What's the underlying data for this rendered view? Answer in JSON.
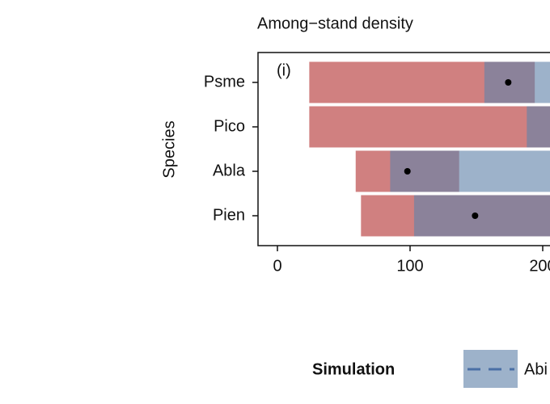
{
  "chart_data": {
    "type": "range-bar",
    "title": "Among−stand density",
    "panel_label": "(i)",
    "y_label": "Species",
    "categories": [
      "Psme",
      "Pico",
      "Abla",
      "Pien"
    ],
    "xlim": [
      -15,
      250
    ],
    "xticks": [
      0,
      100,
      200
    ],
    "series": [
      {
        "color": "#d08080",
        "ranges": [
          [
            24,
            194
          ],
          [
            24,
            215
          ],
          [
            59,
            137
          ],
          [
            63,
            220
          ]
        ]
      },
      {
        "name": "Abi",
        "color": "#6182aa",
        "ranges": [
          [
            156,
            230
          ],
          [
            188,
            240
          ],
          [
            85,
            230
          ],
          [
            103,
            240
          ]
        ]
      }
    ],
    "means": [
      174,
      null,
      98,
      149
    ],
    "legend_title": "Simulation"
  }
}
